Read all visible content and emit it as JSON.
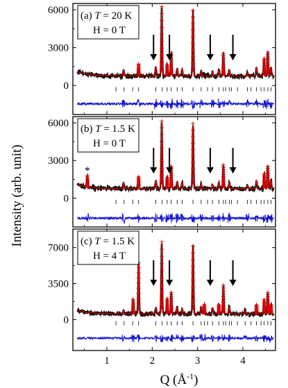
{
  "chart_data": {
    "type": "line",
    "ylabel": "Intensity (arb. unit)",
    "xlabel_main": "Q (Å",
    "xlabel_sup": "-1",
    "xlabel_end": ")",
    "xlim": [
      0.25,
      4.72
    ],
    "xticks": [
      1,
      2,
      3,
      4
    ],
    "xtick_labels": [
      "1",
      "2",
      "3",
      "4"
    ],
    "colors": {
      "observed": "#000000",
      "calculated": "#e00000",
      "difference": "#1010d0",
      "bragg": "#000000",
      "arrow": "#000000"
    },
    "panels": [
      {
        "id": "a",
        "label_prefix": "(a)",
        "temp_text": "T = 20 K",
        "temp_T": "T",
        "temp_rest": " = 20 K",
        "field_text": "H = 0 T",
        "ylim": [
          -2300,
          6500
        ],
        "yticks": [
          0,
          3000,
          6000
        ],
        "ytick_labels": [
          "0",
          "3000",
          "6000"
        ],
        "background": 750,
        "diff_offset": -1450,
        "bragg_offset": -300,
        "peaks": [
          {
            "q": 1.37,
            "h": 500
          },
          {
            "q": 1.7,
            "h": 950
          },
          {
            "q": 2.08,
            "h": 700
          },
          {
            "q": 2.21,
            "h": 5500
          },
          {
            "q": 2.33,
            "h": 900
          },
          {
            "q": 2.42,
            "h": 1800
          },
          {
            "q": 2.55,
            "h": 600
          },
          {
            "q": 2.66,
            "h": 500
          },
          {
            "q": 2.9,
            "h": 5200
          },
          {
            "q": 3.08,
            "h": 400
          },
          {
            "q": 3.33,
            "h": 350
          },
          {
            "q": 3.47,
            "h": 500
          },
          {
            "q": 3.57,
            "h": 1800
          },
          {
            "q": 3.7,
            "h": 500
          },
          {
            "q": 4.1,
            "h": 300
          },
          {
            "q": 4.3,
            "h": 650
          },
          {
            "q": 4.47,
            "h": 1400
          },
          {
            "q": 4.55,
            "h": 1900
          },
          {
            "q": 4.62,
            "h": 700
          }
        ],
        "bragg": [
          1.2,
          1.38,
          1.57,
          1.7,
          2.08,
          2.22,
          2.33,
          2.42,
          2.55,
          2.66,
          2.9,
          3.08,
          3.22,
          3.33,
          3.47,
          3.57,
          3.62,
          3.7,
          3.75,
          3.88,
          4.1,
          4.18,
          4.3,
          4.4,
          4.47,
          4.55,
          4.62
        ],
        "arrows": [
          2.03,
          2.38,
          3.28,
          3.78
        ],
        "stars": []
      },
      {
        "id": "b",
        "label_prefix": "(b)",
        "temp_text": "T = 1.5 K",
        "temp_T": "T",
        "temp_rest": " = 1.5 K",
        "field_text": "H = 0 T",
        "ylim": [
          -2300,
          6500
        ],
        "yticks": [
          0,
          3000,
          6000
        ],
        "ytick_labels": [
          "0",
          "3000",
          "6000"
        ],
        "background": 750,
        "diff_offset": -1600,
        "bragg_offset": -300,
        "peaks": [
          {
            "q": 0.57,
            "h": 900
          },
          {
            "q": 1.37,
            "h": 500
          },
          {
            "q": 1.7,
            "h": 950
          },
          {
            "q": 2.08,
            "h": 700
          },
          {
            "q": 2.21,
            "h": 5400
          },
          {
            "q": 2.33,
            "h": 900
          },
          {
            "q": 2.42,
            "h": 1800
          },
          {
            "q": 2.55,
            "h": 600
          },
          {
            "q": 2.66,
            "h": 500
          },
          {
            "q": 2.9,
            "h": 5200
          },
          {
            "q": 3.08,
            "h": 400
          },
          {
            "q": 3.33,
            "h": 350
          },
          {
            "q": 3.47,
            "h": 500
          },
          {
            "q": 3.57,
            "h": 1900
          },
          {
            "q": 3.7,
            "h": 500
          },
          {
            "q": 4.1,
            "h": 300
          },
          {
            "q": 4.3,
            "h": 650
          },
          {
            "q": 4.47,
            "h": 1200
          },
          {
            "q": 4.55,
            "h": 1800
          },
          {
            "q": 4.62,
            "h": 700
          }
        ],
        "bragg": [
          1.2,
          1.38,
          1.57,
          1.7,
          2.08,
          2.22,
          2.33,
          2.42,
          2.55,
          2.66,
          2.9,
          3.08,
          3.22,
          3.33,
          3.47,
          3.57,
          3.62,
          3.7,
          3.75,
          3.88,
          4.1,
          4.18,
          4.3,
          4.4,
          4.47,
          4.55,
          4.62
        ],
        "arrows": [
          2.03,
          2.38,
          3.28,
          3.78
        ],
        "stars": [
          {
            "q": 0.57,
            "y": 1900,
            "text": "*"
          }
        ]
      },
      {
        "id": "c",
        "label_prefix": "(c)",
        "temp_text": "T = 1.5 K",
        "temp_T": "T",
        "temp_rest": " = 1.5 K",
        "field_text": "H = 4 T",
        "ylim": [
          -3000,
          8800
        ],
        "yticks": [
          0,
          3500,
          7000
        ],
        "ytick_labels": [
          "0",
          "3500",
          "7000"
        ],
        "background": 550,
        "diff_offset": -1800,
        "bragg_offset": -350,
        "peaks": [
          {
            "q": 1.37,
            "h": 350
          },
          {
            "q": 1.58,
            "h": 1400
          },
          {
            "q": 1.7,
            "h": 5000
          },
          {
            "q": 2.08,
            "h": 600
          },
          {
            "q": 2.21,
            "h": 7000
          },
          {
            "q": 2.33,
            "h": 1500
          },
          {
            "q": 2.42,
            "h": 2100
          },
          {
            "q": 2.55,
            "h": 700
          },
          {
            "q": 2.66,
            "h": 500
          },
          {
            "q": 2.9,
            "h": 6600
          },
          {
            "q": 3.08,
            "h": 700
          },
          {
            "q": 3.15,
            "h": 900
          },
          {
            "q": 3.33,
            "h": 600
          },
          {
            "q": 3.47,
            "h": 900
          },
          {
            "q": 3.57,
            "h": 2800
          },
          {
            "q": 3.7,
            "h": 700
          },
          {
            "q": 4.05,
            "h": 400
          },
          {
            "q": 4.3,
            "h": 900
          },
          {
            "q": 4.47,
            "h": 1400
          },
          {
            "q": 4.55,
            "h": 2100
          },
          {
            "q": 4.62,
            "h": 900
          }
        ],
        "bragg": [
          1.2,
          1.38,
          1.57,
          1.7,
          2.08,
          2.22,
          2.33,
          2.42,
          2.55,
          2.66,
          2.9,
          3.08,
          3.15,
          3.22,
          3.33,
          3.47,
          3.57,
          3.62,
          3.7,
          3.75,
          3.88,
          4.05,
          4.18,
          4.3,
          4.4,
          4.47,
          4.55,
          4.62
        ],
        "arrows": [
          2.03,
          2.38,
          3.28,
          3.78
        ],
        "stars": []
      }
    ]
  }
}
